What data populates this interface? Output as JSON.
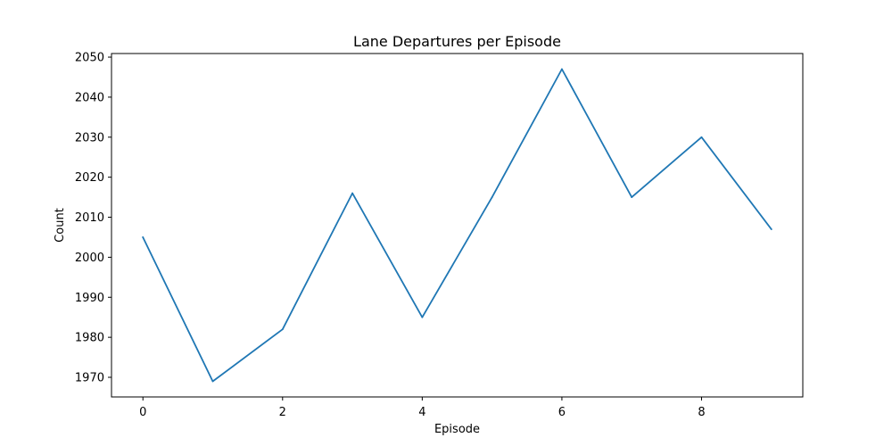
{
  "chart_data": {
    "type": "line",
    "title": "Lane Departures per Episode",
    "xlabel": "Episode",
    "ylabel": "Count",
    "x": [
      0,
      1,
      2,
      3,
      4,
      5,
      6,
      7,
      8,
      9
    ],
    "series": [
      {
        "values": [
          2005,
          1969,
          1982,
          2016,
          1985,
          2015,
          2047,
          2015,
          2030,
          2007
        ],
        "color": "#1f77b4"
      }
    ],
    "xlim": [
      -0.45,
      9.45
    ],
    "ylim": [
      1965.1,
      2050.9
    ],
    "xticks": [
      0,
      2,
      4,
      6,
      8
    ],
    "yticks": [
      1970,
      1980,
      1990,
      2000,
      2010,
      2020,
      2030,
      2040,
      2050
    ],
    "grid": false,
    "legend": "none"
  }
}
